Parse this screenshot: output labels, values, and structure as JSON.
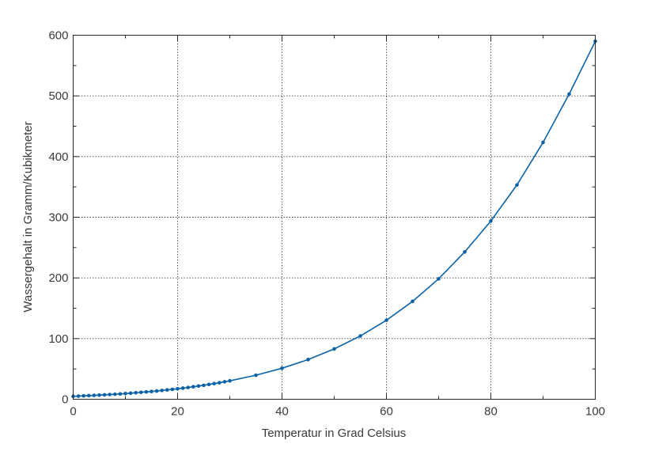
{
  "chart_data": {
    "type": "line",
    "xlabel": "Temperatur in Grad Celsius",
    "ylabel": "Wassergehalt in Gramm/Kubikmeter",
    "xlim": [
      0,
      100
    ],
    "ylim": [
      0,
      600
    ],
    "x_ticks": [
      0,
      20,
      40,
      60,
      80,
      100
    ],
    "y_ticks": [
      0,
      100,
      200,
      300,
      400,
      500,
      600
    ],
    "grid": true,
    "line_color": "#0b62a8",
    "series": [
      {
        "x": [
          0,
          1,
          2,
          3,
          4,
          5,
          6,
          7,
          8,
          9,
          10,
          11,
          12,
          13,
          14,
          15,
          16,
          17,
          18,
          19,
          20,
          21,
          22,
          23,
          24,
          25,
          26,
          27,
          28,
          29,
          30,
          35,
          40,
          45,
          50,
          55,
          60,
          65,
          70,
          75,
          80,
          85,
          90,
          95,
          100
        ],
        "values": [
          4.8,
          5.2,
          5.6,
          6.0,
          6.4,
          6.8,
          7.3,
          7.8,
          8.3,
          8.8,
          9.4,
          10.0,
          10.7,
          11.4,
          12.1,
          12.8,
          13.6,
          14.5,
          15.4,
          16.3,
          17.3,
          18.3,
          19.4,
          20.6,
          21.8,
          23.0,
          24.4,
          25.8,
          27.2,
          28.8,
          30.4,
          39.6,
          51.1,
          65.4,
          83.0,
          104.3,
          130.2,
          161.3,
          198.5,
          242.8,
          293.8,
          353.3,
          423.3,
          503.0,
          590.0
        ]
      }
    ]
  }
}
